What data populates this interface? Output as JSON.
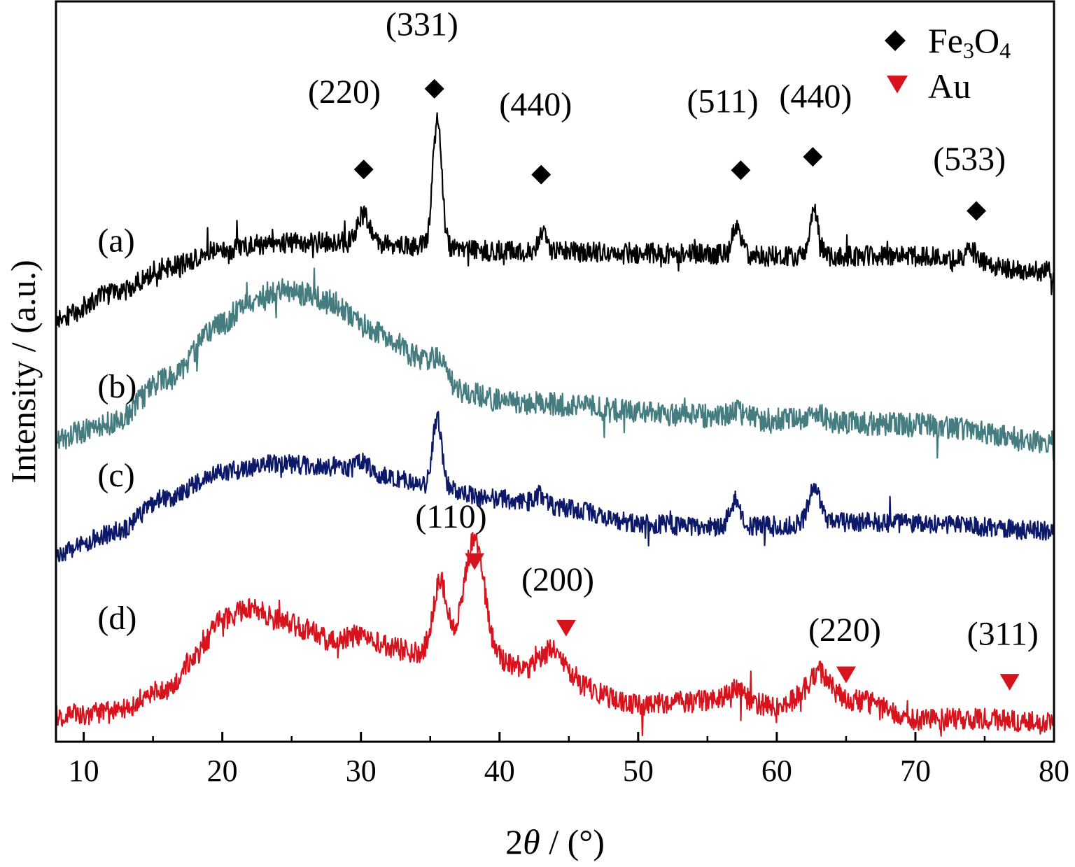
{
  "chart_data": {
    "type": "line",
    "xlabel": {
      "prefix": "2",
      "symbol": "θ",
      "suffix": " / (°)"
    },
    "ylabel": "Intensity / (a.u.)",
    "xlim": [
      8,
      80
    ],
    "ylim": [
      0,
      100
    ],
    "xticks": [
      10,
      20,
      30,
      40,
      50,
      60,
      70,
      80
    ],
    "y_ticks_shown": false,
    "legend": {
      "position": "top-right",
      "entries": [
        {
          "marker": "diamond",
          "color": "#000000",
          "text": "Fe",
          "sub1": "3",
          "mid": "O",
          "sub2": "4"
        },
        {
          "marker": "triangle-down",
          "color": "#d7141e",
          "text": "Au"
        }
      ]
    },
    "series": [
      {
        "label": "(a)",
        "color": "#000000",
        "label_at": [
          11,
          66.2
        ],
        "baseline": [
          [
            8,
            57
          ],
          [
            12,
            60.5
          ],
          [
            16,
            64
          ],
          [
            20,
            66.5
          ],
          [
            24,
            67.4
          ],
          [
            28,
            67.5
          ],
          [
            32,
            67.1
          ],
          [
            40,
            66.3
          ],
          [
            50,
            66.0
          ],
          [
            60,
            65.6
          ],
          [
            70,
            65.6
          ],
          [
            80,
            63.5
          ]
        ],
        "peaks": [
          [
            30.2,
            4.0,
            0.4
          ],
          [
            35.5,
            17.0,
            0.32
          ],
          [
            43.1,
            3.0,
            0.3
          ],
          [
            57.1,
            4.0,
            0.3
          ],
          [
            62.7,
            6.5,
            0.32
          ],
          [
            74.0,
            1.5,
            0.4
          ]
        ],
        "noise": 1.4
      },
      {
        "label": "(b)",
        "color": "#457c80",
        "label_at": [
          11,
          46.5
        ],
        "baseline": [
          [
            8,
            41
          ],
          [
            12,
            43
          ],
          [
            16,
            49
          ],
          [
            20,
            56.5
          ],
          [
            22,
            59.5
          ],
          [
            24,
            61
          ],
          [
            26,
            60.5
          ],
          [
            28,
            59.2
          ],
          [
            30,
            56.5
          ],
          [
            32,
            54.5
          ],
          [
            34,
            52
          ],
          [
            36,
            48.5
          ],
          [
            38,
            47
          ],
          [
            40,
            46
          ],
          [
            45,
            45.5
          ],
          [
            50,
            44.5
          ],
          [
            55,
            44
          ],
          [
            60,
            43.5
          ],
          [
            70,
            42.8
          ],
          [
            80,
            40.5
          ]
        ],
        "peaks": [
          [
            35.6,
            3.0,
            0.45
          ],
          [
            57.0,
            1.0,
            0.5
          ],
          [
            62.8,
            1.2,
            0.5
          ]
        ],
        "noise": 1.6
      },
      {
        "label": "(c)",
        "color": "#0c1868",
        "label_at": [
          11,
          34.5
        ],
        "baseline": [
          [
            8,
            25.5
          ],
          [
            12,
            28
          ],
          [
            16,
            33
          ],
          [
            20,
            36.5
          ],
          [
            24,
            37.5
          ],
          [
            28,
            37.2
          ],
          [
            32,
            35.8
          ],
          [
            35,
            34.5
          ],
          [
            40,
            32.8
          ],
          [
            45,
            31.5
          ],
          [
            50,
            29.5
          ],
          [
            55,
            29
          ],
          [
            60,
            29.2
          ],
          [
            65,
            29.7
          ],
          [
            70,
            29.5
          ],
          [
            80,
            28.5
          ]
        ],
        "peaks": [
          [
            30.2,
            1.5,
            0.4
          ],
          [
            35.5,
            9.5,
            0.32
          ],
          [
            43.0,
            1.5,
            0.4
          ],
          [
            57.0,
            3.5,
            0.4
          ],
          [
            62.7,
            5.0,
            0.4
          ]
        ],
        "noise": 1.3
      },
      {
        "label": "(d)",
        "color": "#d7141e",
        "label_at": [
          11,
          15.2
        ],
        "baseline": [
          [
            8,
            3.5
          ],
          [
            12,
            4
          ],
          [
            16,
            7
          ],
          [
            18,
            11.5
          ],
          [
            20,
            16.5
          ],
          [
            22,
            18
          ],
          [
            24,
            16.5
          ],
          [
            26,
            15.3
          ],
          [
            28,
            13.5
          ],
          [
            30,
            14.5
          ],
          [
            32,
            12.8
          ],
          [
            34,
            12
          ],
          [
            36,
            14
          ],
          [
            38,
            13
          ],
          [
            40,
            11
          ],
          [
            42,
            10
          ],
          [
            44,
            10.5
          ],
          [
            46,
            7.5
          ],
          [
            48,
            6
          ],
          [
            50,
            5
          ],
          [
            55,
            5.5
          ],
          [
            60,
            5
          ],
          [
            63,
            7
          ],
          [
            66,
            5.5
          ],
          [
            70,
            3
          ],
          [
            75,
            3
          ],
          [
            80,
            2.5
          ]
        ],
        "peaks": [
          [
            35.7,
            8.0,
            0.45
          ],
          [
            38.2,
            14.5,
            0.7
          ],
          [
            43.8,
            2.0,
            0.7
          ],
          [
            57.0,
            2.0,
            0.6
          ],
          [
            63.0,
            2.5,
            0.6
          ]
        ],
        "noise": 1.5
      }
    ],
    "annotations": [
      {
        "text": "(220)",
        "x": 28.8,
        "y": 86.3,
        "marker": "diamond",
        "mx": 30.2,
        "my": 77.3,
        "color": "#000000"
      },
      {
        "text": "(331)",
        "x": 34.4,
        "y": 95.4,
        "marker": "diamond",
        "mx": 35.3,
        "my": 88.2,
        "color": "#000000"
      },
      {
        "text": "(440)",
        "x": 42.6,
        "y": 84.6,
        "marker": "diamond",
        "mx": 43.0,
        "my": 76.6,
        "color": "#000000"
      },
      {
        "text": "(511)",
        "x": 56.1,
        "y": 85.0,
        "marker": "diamond",
        "mx": 57.4,
        "my": 77.2,
        "color": "#000000"
      },
      {
        "text": "(440)",
        "x": 62.8,
        "y": 85.7,
        "marker": "diamond",
        "mx": 62.6,
        "my": 79.0,
        "color": "#000000"
      },
      {
        "text": "(533)",
        "x": 73.9,
        "y": 77.2,
        "marker": "diamond",
        "mx": 74.4,
        "my": 71.7,
        "color": "#000000"
      },
      {
        "text": "(110)",
        "x": 36.5,
        "y": 28.9,
        "marker": "triangle-down",
        "mx": 38.2,
        "my": 24.4,
        "color": "#d7141e"
      },
      {
        "text": "(200)",
        "x": 44.2,
        "y": 20.4,
        "marker": "triangle-down",
        "mx": 44.8,
        "my": 15.4,
        "color": "#d7141e"
      },
      {
        "text": "(220)",
        "x": 64.9,
        "y": 13.6,
        "marker": "triangle-down",
        "mx": 65.0,
        "my": 9.1,
        "color": "#d7141e"
      },
      {
        "text": "(311)",
        "x": 76.3,
        "y": 13.1,
        "marker": "triangle-down",
        "mx": 76.8,
        "my": 8.1,
        "color": "#d7141e"
      }
    ]
  }
}
